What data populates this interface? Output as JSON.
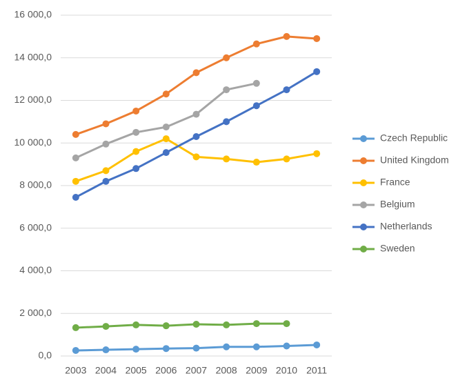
{
  "chart_data": {
    "type": "line",
    "categories": [
      "2003",
      "2004",
      "2005",
      "2006",
      "2007",
      "2008",
      "2009",
      "2010",
      "2011"
    ],
    "series": [
      {
        "name": "Czech Republic",
        "color": "#5b9bd5",
        "values": [
          260,
          290,
          320,
          350,
          370,
          430,
          430,
          470,
          520
        ]
      },
      {
        "name": "United Kingdom",
        "color": "#ed7d31",
        "values": [
          10400,
          10900,
          11500,
          12300,
          13300,
          14000,
          14650,
          15000,
          14900
        ]
      },
      {
        "name": "France",
        "color": "#ffc000",
        "values": [
          8200,
          8700,
          9600,
          10200,
          9350,
          9250,
          9100,
          9250,
          9500
        ]
      },
      {
        "name": "Belgium",
        "color": "#a5a5a5",
        "values": [
          9300,
          9950,
          10500,
          10750,
          11350,
          12500,
          12800,
          null,
          null
        ]
      },
      {
        "name": "Netherlands",
        "color": "#4472c4",
        "values": [
          7450,
          8200,
          8800,
          9550,
          10300,
          11000,
          11750,
          12500,
          13350
        ]
      },
      {
        "name": "Sweden",
        "color": "#70ad47",
        "values": [
          1330,
          1390,
          1460,
          1420,
          1490,
          1460,
          1520,
          1520,
          null
        ]
      }
    ],
    "ylim": [
      0,
      16000
    ],
    "yticks": [
      {
        "value": 0,
        "label": "0,0"
      },
      {
        "value": 2000,
        "label": "2 000,0"
      },
      {
        "value": 4000,
        "label": "4 000,0"
      },
      {
        "value": 6000,
        "label": "6 000,0"
      },
      {
        "value": 8000,
        "label": "8 000,0"
      },
      {
        "value": 10000,
        "label": "10 000,0"
      },
      {
        "value": 12000,
        "label": "12 000,0"
      },
      {
        "value": 14000,
        "label": "14 000,0"
      },
      {
        "value": 16000,
        "label": "16 000,0"
      }
    ],
    "grid": true,
    "legend": "right"
  }
}
